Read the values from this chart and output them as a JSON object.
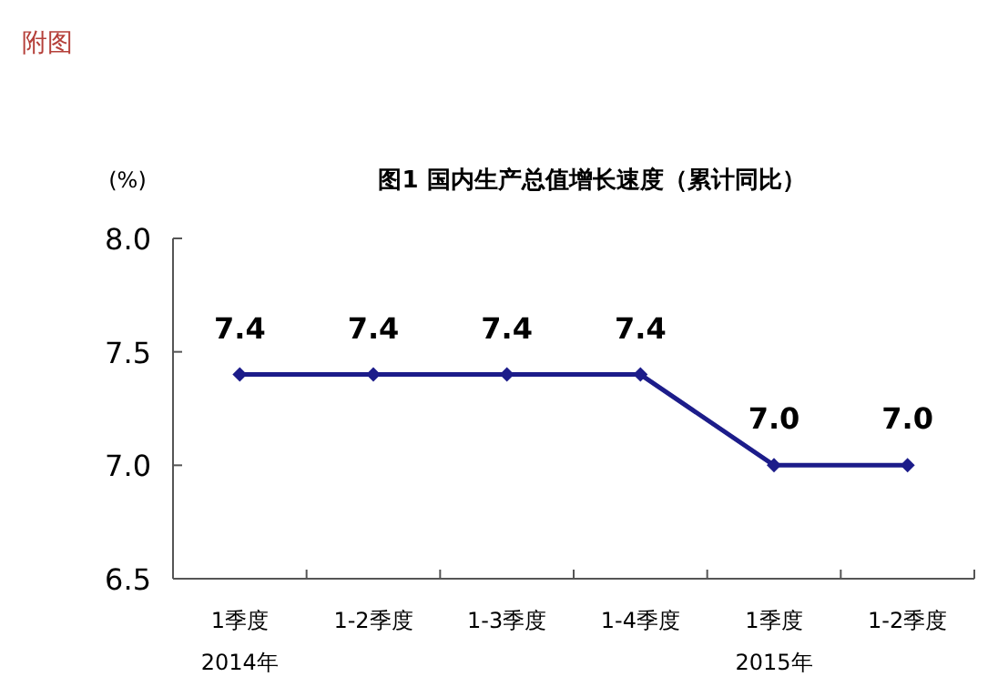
{
  "chart_data": {
    "type": "line",
    "title": "图1  国内生产总值增长速度（累计同比）",
    "ylabel": "(%)",
    "annotations": [
      "附图"
    ],
    "categories": [
      "1季度\n2014年",
      "1-2季度",
      "1-3季度",
      "1-4季度",
      "1季度\n2015年",
      "1-2季度"
    ],
    "series": [
      {
        "color": "#1c1c8a",
        "values": [
          7.4,
          7.4,
          7.4,
          7.4,
          7.0,
          7.0
        ],
        "value_labels": [
          "7.4",
          "7.4",
          "7.4",
          "7.4",
          "7.0",
          "7.0"
        ]
      }
    ],
    "ylim": [
      6.5,
      8.0
    ],
    "yticks": [
      {
        "value": 6.5,
        "label": "6.5"
      },
      {
        "value": 7,
        "label": "7.0"
      },
      {
        "value": 7.5,
        "label": "7.5"
      },
      {
        "value": 8,
        "label": "8.0"
      }
    ],
    "marker": "diamond",
    "line_style": "solid",
    "grid": false
  }
}
